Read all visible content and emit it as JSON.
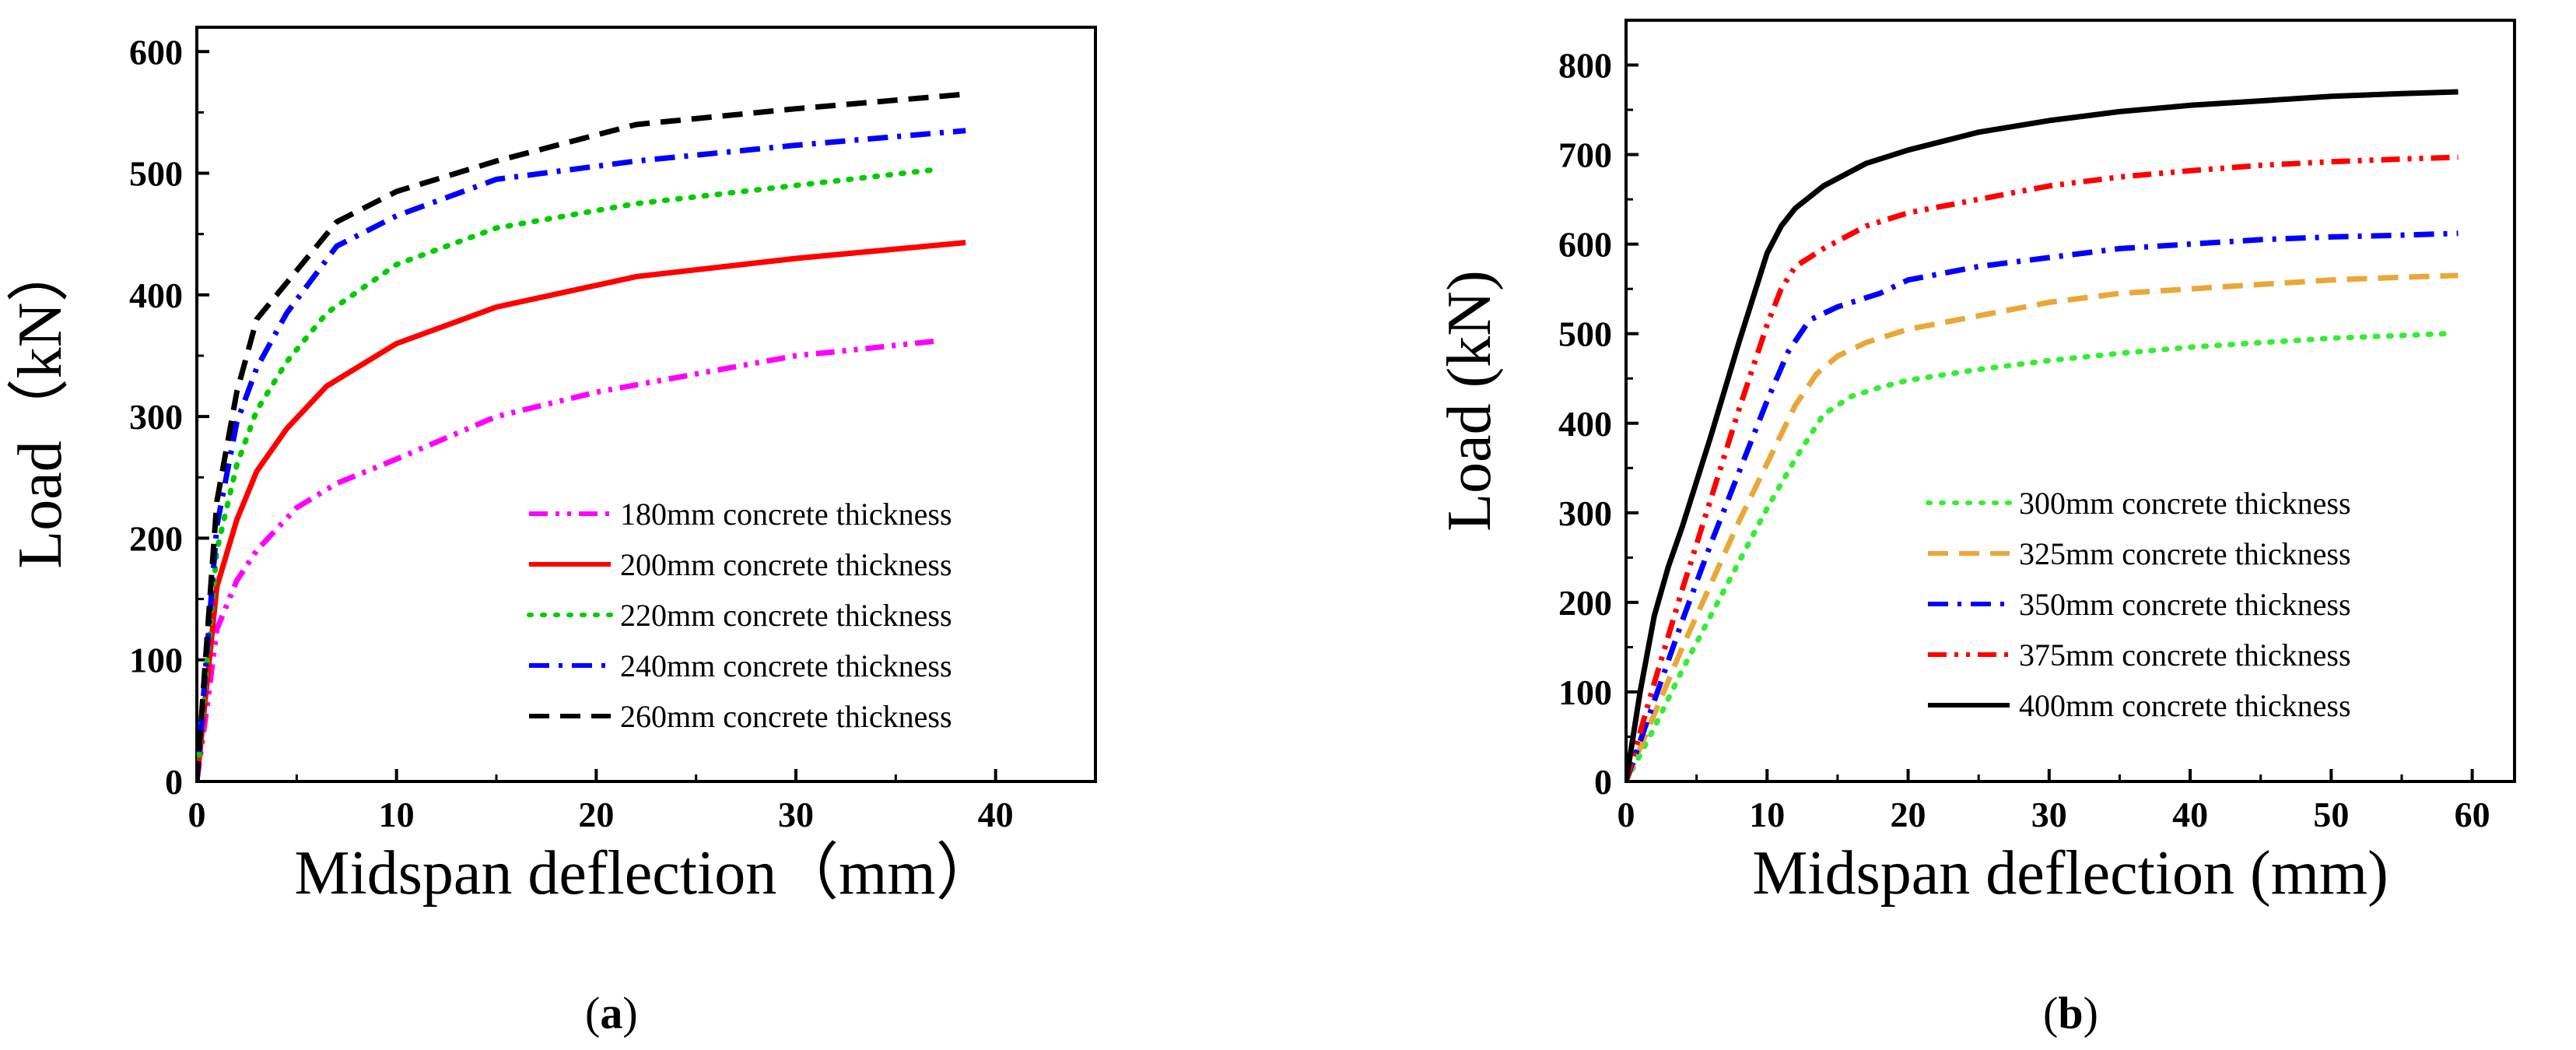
{
  "chart_data": [
    {
      "type": "line",
      "panel_label": "a",
      "xlabel": "Midspan deflection（mm）",
      "ylabel": "Load（kN）",
      "xlim": [
        0,
        45
      ],
      "ylim": [
        0,
        620
      ],
      "xticks": [
        "0",
        "10",
        "20",
        "30",
        "40"
      ],
      "yticks": [
        "0",
        "100",
        "200",
        "300",
        "400",
        "500",
        "600"
      ],
      "legend_position": "bottom-right",
      "grid": false,
      "series": [
        {
          "name": "180mm concrete thickness",
          "color": "#ff00ff",
          "dash": "dashdotdot",
          "x": [
            0,
            0.5,
            1.0,
            2.0,
            3.0,
            5.0,
            7.0,
            10.0,
            15.0,
            20.0,
            25.0,
            30.0,
            33.0,
            37.0
          ],
          "y": [
            0,
            60,
            125,
            165,
            190,
            225,
            245,
            265,
            300,
            320,
            335,
            350,
            355,
            362
          ]
        },
        {
          "name": "200mm concrete thickness",
          "color": "#ff0000",
          "dash": "solid",
          "x": [
            0,
            0.5,
            1.0,
            2.0,
            3.0,
            4.5,
            6.5,
            10.0,
            15.0,
            22.0,
            30.0,
            38.5
          ],
          "y": [
            0,
            80,
            160,
            215,
            255,
            290,
            325,
            360,
            390,
            415,
            430,
            443
          ]
        },
        {
          "name": "220mm concrete thickness",
          "color": "#00cc00",
          "dash": "dot",
          "x": [
            0,
            0.5,
            1.0,
            2.0,
            3.0,
            4.5,
            6.5,
            10.0,
            15.0,
            22.0,
            30.0,
            37.0
          ],
          "y": [
            0,
            95,
            190,
            260,
            305,
            345,
            385,
            425,
            455,
            475,
            490,
            503
          ]
        },
        {
          "name": "240mm concrete thickness",
          "color": "#0000ff",
          "dash": "dashdot",
          "x": [
            0,
            0.5,
            1.0,
            2.0,
            3.0,
            4.5,
            7.0,
            10.0,
            15.0,
            22.0,
            30.0,
            38.5
          ],
          "y": [
            0,
            105,
            210,
            295,
            340,
            385,
            440,
            465,
            495,
            510,
            523,
            535
          ]
        },
        {
          "name": "260mm concrete thickness",
          "color": "#000000",
          "dash": "dash",
          "x": [
            0,
            0.5,
            1.0,
            2.0,
            3.0,
            5.0,
            7.0,
            10.0,
            15.0,
            22.0,
            30.0,
            38.5
          ],
          "y": [
            0,
            115,
            230,
            320,
            380,
            420,
            460,
            485,
            510,
            540,
            553,
            565
          ]
        }
      ]
    },
    {
      "type": "line",
      "panel_label": "b",
      "xlabel": "Midspan deflection (mm)",
      "ylabel": "Load (kN)",
      "xlim": [
        0,
        63
      ],
      "ylim": [
        0,
        850
      ],
      "xticks": [
        "0",
        "10",
        "20",
        "30",
        "40",
        "50",
        "60"
      ],
      "yticks": [
        "0",
        "100",
        "200",
        "300",
        "400",
        "500",
        "600",
        "700",
        "800"
      ],
      "legend_position": "bottom-right",
      "grid": false,
      "series": [
        {
          "name": "300mm concrete thickness",
          "color": "#33ee33",
          "dash": "dot",
          "x": [
            0,
            2,
            4,
            6,
            8,
            10,
            12,
            14,
            16,
            18,
            20,
            25,
            30,
            35,
            40,
            45,
            50,
            55,
            58
          ],
          "y": [
            0,
            60,
            125,
            185,
            245,
            305,
            360,
            410,
            430,
            440,
            448,
            460,
            470,
            478,
            485,
            490,
            495,
            498,
            500
          ]
        },
        {
          "name": "325mm concrete thickness",
          "color": "#e8a838",
          "dash": "dash",
          "x": [
            0,
            2,
            4,
            6,
            8,
            10,
            12,
            13.5,
            15,
            17,
            20,
            25,
            30,
            35,
            40,
            45,
            50,
            55,
            59
          ],
          "y": [
            0,
            75,
            150,
            220,
            290,
            355,
            420,
            455,
            475,
            490,
            505,
            520,
            535,
            545,
            550,
            555,
            560,
            563,
            565
          ]
        },
        {
          "name": "350mm concrete thickness",
          "color": "#0000ff",
          "dash": "dashdot",
          "x": [
            0,
            2,
            4,
            6,
            8,
            10,
            11.5,
            13,
            15,
            18,
            20,
            25,
            30,
            35,
            40,
            45,
            50,
            55,
            59
          ],
          "y": [
            0,
            90,
            180,
            265,
            345,
            425,
            480,
            515,
            530,
            545,
            560,
            575,
            585,
            595,
            600,
            605,
            608,
            610,
            612
          ]
        },
        {
          "name": "375mm concrete thickness",
          "color": "#ff0000",
          "dash": "dashdotdot",
          "x": [
            0,
            2,
            4,
            6,
            8,
            10,
            11,
            12,
            14,
            17,
            20,
            25,
            30,
            35,
            40,
            45,
            50,
            55,
            59
          ],
          "y": [
            0,
            110,
            215,
            315,
            415,
            510,
            550,
            575,
            595,
            620,
            635,
            650,
            665,
            675,
            682,
            688,
            692,
            695,
            697
          ]
        },
        {
          "name": "400mm concrete thickness",
          "color": "#000000",
          "dash": "solid",
          "x": [
            0,
            1,
            2,
            3,
            4,
            6,
            8,
            10,
            11,
            12,
            14,
            17,
            20,
            25,
            30,
            35,
            40,
            45,
            50,
            55,
            59
          ],
          "y": [
            0,
            100,
            185,
            240,
            285,
            385,
            490,
            590,
            620,
            640,
            665,
            690,
            705,
            725,
            738,
            748,
            755,
            760,
            765,
            768,
            770
          ]
        }
      ]
    }
  ]
}
